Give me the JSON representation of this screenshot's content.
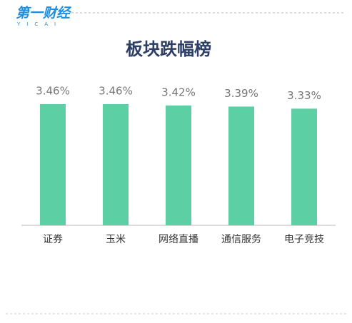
{
  "logo": {
    "name": "第一财经",
    "sub": "YICAI"
  },
  "chart_data": {
    "type": "bar",
    "title": "板块跌幅榜",
    "categories": [
      "证券",
      "玉米",
      "网络直播",
      "通信服务",
      "电子竞技"
    ],
    "values": [
      3.46,
      3.46,
      3.42,
      3.39,
      3.33
    ],
    "value_labels": [
      "3.46%",
      "3.46%",
      "3.42%",
      "3.39%",
      "3.33%"
    ],
    "color": "#5dcfa5"
  }
}
